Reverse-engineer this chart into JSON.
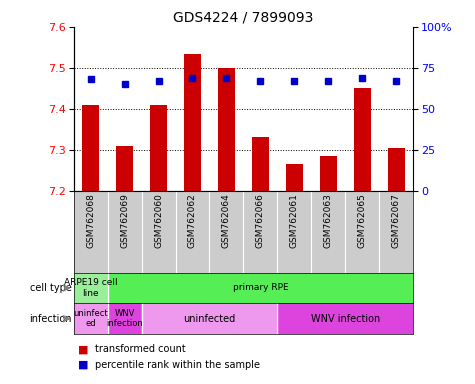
{
  "title": "GDS4224 / 7899093",
  "samples": [
    "GSM762068",
    "GSM762069",
    "GSM762060",
    "GSM762062",
    "GSM762064",
    "GSM762066",
    "GSM762061",
    "GSM762063",
    "GSM762065",
    "GSM762067"
  ],
  "transformed_counts": [
    7.41,
    7.31,
    7.41,
    7.535,
    7.5,
    7.33,
    7.265,
    7.285,
    7.45,
    7.305
  ],
  "percentile_ranks": [
    68,
    65,
    67,
    69,
    69,
    67,
    67,
    67,
    69,
    67
  ],
  "ylim": [
    7.2,
    7.6
  ],
  "yticks": [
    7.2,
    7.3,
    7.4,
    7.5,
    7.6
  ],
  "right_ylim": [
    0,
    100
  ],
  "right_yticks": [
    0,
    25,
    50,
    75,
    100
  ],
  "right_yticklabels": [
    "0",
    "25",
    "50",
    "75",
    "100%"
  ],
  "bar_color": "#cc0000",
  "dot_color": "#0000cc",
  "cell_blocks": [
    {
      "label": "ARPE19 cell\nline",
      "xstart": -0.5,
      "xend": 0.5,
      "color": "#99ee99"
    },
    {
      "label": "primary RPE",
      "xstart": 0.5,
      "xend": 9.5,
      "color": "#55ee55"
    }
  ],
  "infect_blocks": [
    {
      "label": "uninfect\ned",
      "xstart": -0.5,
      "xend": 0.5,
      "color": "#ee99ee"
    },
    {
      "label": "WNV\ninfection",
      "xstart": 0.5,
      "xend": 1.5,
      "color": "#dd44dd"
    },
    {
      "label": "uninfected",
      "xstart": 1.5,
      "xend": 5.5,
      "color": "#ee99ee"
    },
    {
      "label": "WNV infection",
      "xstart": 5.5,
      "xend": 9.5,
      "color": "#dd44dd"
    }
  ],
  "legend_bar_label": "transformed count",
  "legend_dot_label": "percentile rank within the sample",
  "cell_type_row_label": "cell type",
  "infection_row_label": "infection",
  "bg_color": "#cccccc"
}
